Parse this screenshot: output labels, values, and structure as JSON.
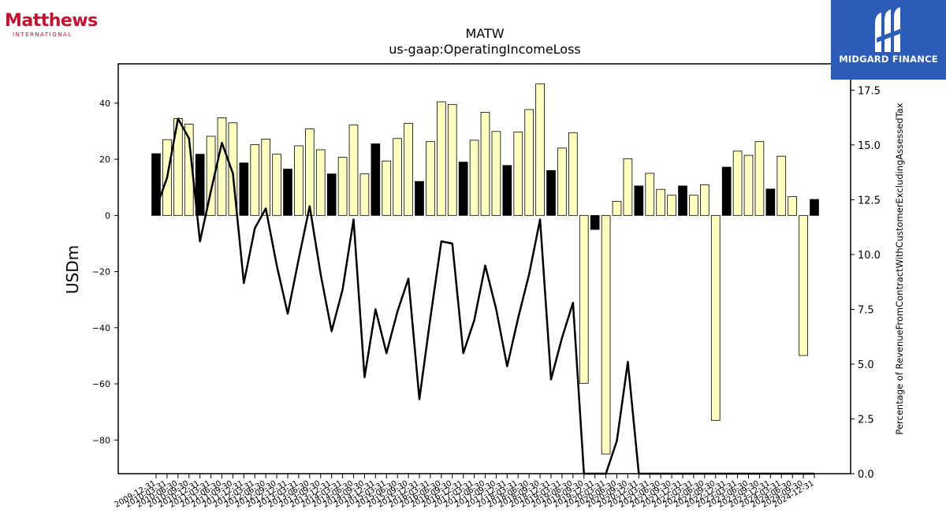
{
  "logos": {
    "left_brand": "Matthews",
    "left_sub": "INTERNATIONAL",
    "right_brand": "MIDGARD FINANCE"
  },
  "chart_data": {
    "type": "bar",
    "title": "MATW",
    "subtitle": "us-gaap:OperatingIncomeLoss",
    "ylabel": "USDm",
    "y2label": "Percentage of RevenueFromContractWithCustomerExcludingAssessedTax",
    "ylim": [
      -92,
      54
    ],
    "y2lim": [
      0,
      18.7
    ],
    "yticks": [
      -80,
      -60,
      -40,
      -20,
      0,
      20,
      40
    ],
    "y2ticks": [
      0.0,
      2.5,
      5.0,
      7.5,
      10.0,
      12.5,
      15.0,
      17.5
    ],
    "colors": {
      "annual": "#000000",
      "quarter": "#ffffc0",
      "line": "#000000"
    },
    "categories": [
      "2009-12-31",
      "2010-03-31",
      "2010-06-30",
      "2010-09-30",
      "2010-12-31",
      "2011-03-31",
      "2011-06-30",
      "2011-09-30",
      "2011-12-31",
      "2012-03-31",
      "2012-06-30",
      "2012-09-30",
      "2012-12-31",
      "2013-03-31",
      "2013-06-30",
      "2013-09-30",
      "2013-12-31",
      "2014-03-31",
      "2014-06-30",
      "2014-09-30",
      "2014-12-31",
      "2015-03-31",
      "2015-06-30",
      "2015-09-30",
      "2015-12-31",
      "2016-03-31",
      "2016-06-30",
      "2016-09-30",
      "2016-12-31",
      "2017-03-31",
      "2017-06-30",
      "2017-09-30",
      "2017-12-31",
      "2018-03-31",
      "2018-06-30",
      "2018-09-30",
      "2018-12-31",
      "2019-03-31",
      "2019-06-30",
      "2019-09-30",
      "2019-12-31",
      "2020-03-31",
      "2020-06-30",
      "2020-09-30",
      "2020-12-31",
      "2021-03-31",
      "2021-06-30",
      "2021-09-30",
      "2021-12-31",
      "2022-03-31",
      "2022-06-30",
      "2022-09-30",
      "2022-12-31",
      "2023-03-31",
      "2023-06-30",
      "2023-09-30",
      "2023-12-31",
      "2024-03-31",
      "2024-06-30",
      "2024-09-30",
      "2024-12-31"
    ],
    "tick_labels": [
      "2009-12-31",
      "2010-03-31",
      "2010-06-30",
      "2010-09-30",
      "2010-12-31",
      "2011-03-31",
      "2011-06-30",
      "2011-09-30",
      "2011-12-31",
      "2012-03-31",
      "2012-06-30",
      "2012-09-30",
      "2012-12-31",
      "2013-03-31",
      "2013-06-30",
      "2013-09-30",
      "2013-12-31",
      "2014-03-31",
      "2014-06-30",
      "2014-09-30",
      "2014-12-31",
      "2015-03-31",
      "2015-06-30",
      "2015-09-30",
      "2015-12-31",
      "2016-03-31",
      "2016-06-30",
      "2016-09-30",
      "2016-12-31",
      "2017-03-31",
      "2017-06-30",
      "2017-09-30",
      "2017-12-31",
      "2018-03-31",
      "2018-06-30",
      "2018-09-30",
      "2018-12-31",
      "2019-03-31",
      "2019-06-30",
      "2019-09-30",
      "2019-12-31",
      "2020-03-31",
      "2020-06-30",
      "2020-09-30",
      "2020-12-31",
      "2021-03-31",
      "2021-06-30",
      "2021-09-30",
      "2021-12-31",
      "2022-03-31",
      "2022-06-30",
      "2022-09-30",
      "2022-12-31",
      "2023-03-31",
      "2023-06-30",
      "2023-09-30",
      "2023-12-31",
      "2024-03-31",
      "2024-06-30",
      "2024-09-30",
      "2024-12-31"
    ],
    "values": [
      22,
      27,
      34.5,
      32.5,
      21.8,
      28.2,
      34.8,
      33,
      18.7,
      25.2,
      27.2,
      21.8,
      16.5,
      24.8,
      30.8,
      23.4,
      14.8,
      20.7,
      32.2,
      14.8,
      25.5,
      19.4,
      27.4,
      32.8,
      12.1,
      26.3,
      40.5,
      39.5,
      19,
      26.8,
      36.7,
      29.9,
      17.8,
      29.7,
      37.7,
      46.9,
      16,
      24,
      29.5,
      -59.8,
      -5,
      -85,
      5,
      20.2,
      10.5,
      15,
      9.3,
      7.2,
      10.5,
      7.2,
      10.9,
      -73,
      17.2,
      22.9,
      21.4,
      26.3,
      9.4,
      21.1,
      6.7,
      -49.9,
      5.7
    ],
    "is_annual": [
      true,
      false,
      false,
      false,
      true,
      false,
      false,
      false,
      true,
      false,
      false,
      false,
      true,
      false,
      false,
      false,
      true,
      false,
      false,
      false,
      true,
      false,
      false,
      false,
      true,
      false,
      false,
      false,
      true,
      false,
      false,
      false,
      true,
      false,
      false,
      false,
      true,
      false,
      false,
      false,
      true,
      false,
      false,
      false,
      true,
      false,
      false,
      false,
      true,
      false,
      false,
      false,
      true,
      false,
      false,
      false,
      true,
      false,
      false,
      false,
      true
    ],
    "pct_revenue": [
      12.1,
      13.5,
      16.2,
      15.3,
      10.6,
      12.9,
      15.1,
      13.7,
      8.7,
      11.2,
      12.1,
      9.5,
      7.3,
      9.8,
      12.2,
      9.1,
      6.5,
      8.4,
      11.6,
      4.4,
      7.5,
      5.5,
      7.4,
      8.9,
      3.4,
      7.1,
      10.6,
      10.5,
      5.5,
      7.0,
      9.5,
      7.5,
      4.9,
      7.1,
      9.1,
      11.6,
      4.3,
      6.2,
      7.8,
      0,
      0,
      0,
      1.5,
      5.1,
      0,
      0,
      0,
      0,
      0,
      0,
      0,
      0,
      0,
      0,
      0,
      0,
      0,
      0,
      0,
      0,
      0
    ]
  }
}
